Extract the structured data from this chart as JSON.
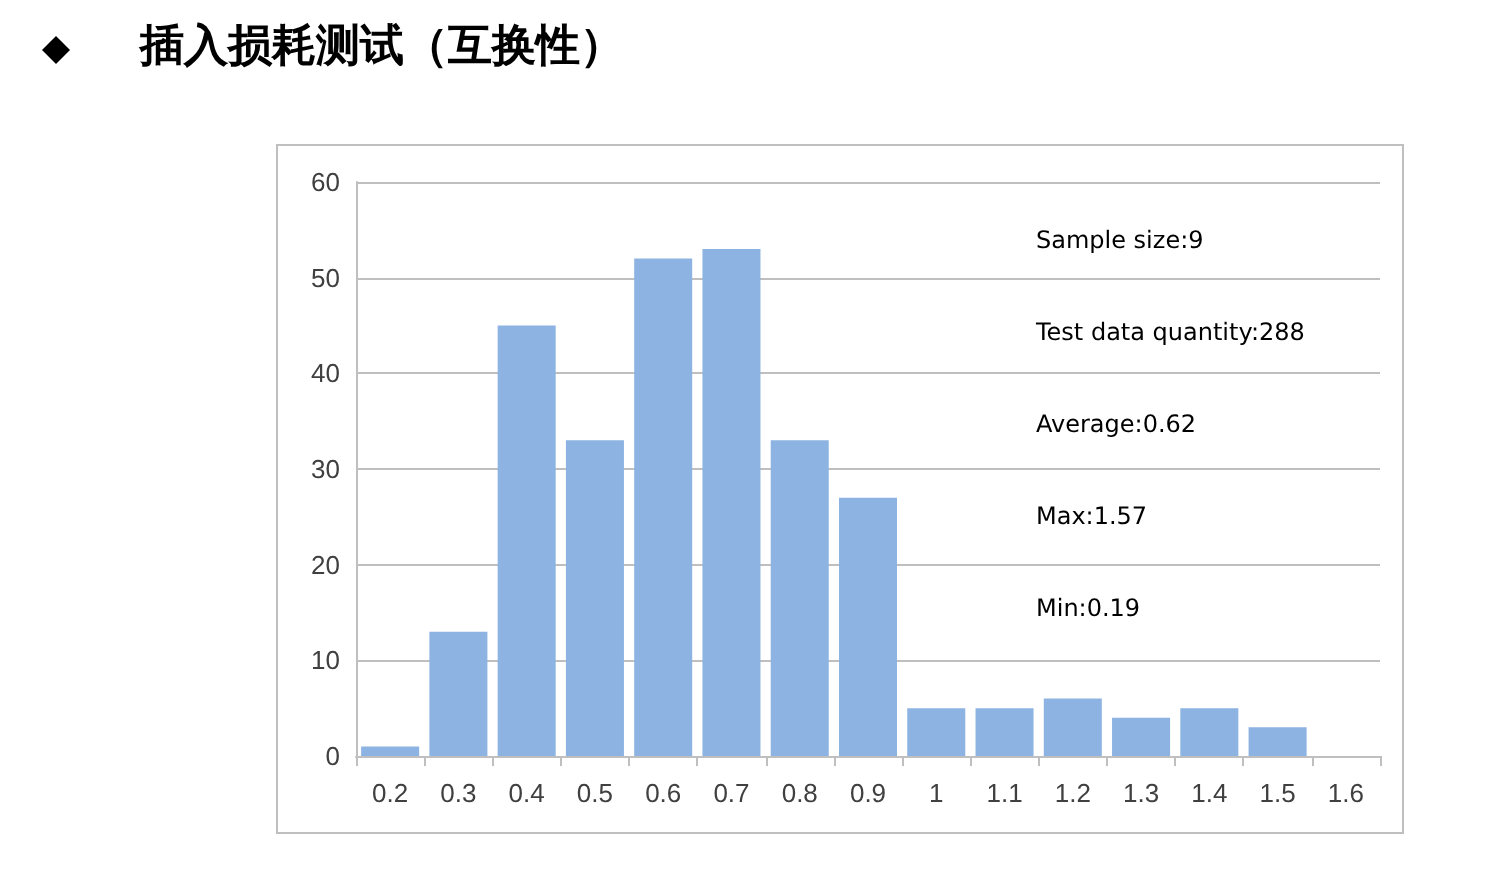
{
  "chart_data": {
    "type": "bar",
    "title": "插入损耗测试（互换性）",
    "categories": [
      "0.2",
      "0.3",
      "0.4",
      "0.5",
      "0.6",
      "0.7",
      "0.8",
      "0.9",
      "1",
      "1.1",
      "1.2",
      "1.3",
      "1.4",
      "1.5",
      "1.6"
    ],
    "values": [
      1,
      13,
      45,
      33,
      52,
      53,
      33,
      27,
      5,
      5,
      6,
      4,
      5,
      3,
      0
    ],
    "color": "#8db3e2",
    "ylim": [
      0,
      60
    ],
    "yticks": [
      0,
      10,
      20,
      30,
      40,
      50,
      60
    ],
    "grid": "y",
    "annotations": [
      "Sample size:9",
      "Test data quantity:288",
      "Average:0.62",
      "Max:1.57",
      "Min:0.19"
    ]
  }
}
